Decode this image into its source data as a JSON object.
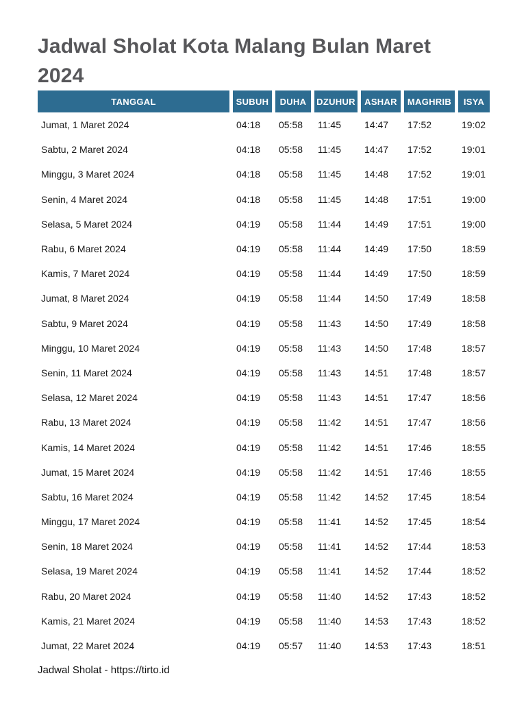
{
  "page": {
    "title_lines": [
      "Jadwal Sholat Kota Malang Bulan Maret",
      "2024"
    ],
    "footer_text": "Jadwal Sholat - https://tirto.id"
  },
  "colors": {
    "header_bg": "#2d6c91",
    "header_text": "#ffffff",
    "title_text": "#57575a",
    "body_text": "#1a1a1a",
    "page_bg": "#ffffff"
  },
  "table": {
    "columns": [
      "TANGGAL",
      "SUBUH",
      "DUHA",
      "DZUHUR",
      "ASHAR",
      "MAGHRIB",
      "ISYA"
    ],
    "rows": [
      [
        "Jumat, 1 Maret 2024",
        "04:18",
        "05:58",
        "11:45",
        "14:47",
        "17:52",
        "19:02"
      ],
      [
        "Sabtu, 2 Maret 2024",
        "04:18",
        "05:58",
        "11:45",
        "14:47",
        "17:52",
        "19:01"
      ],
      [
        "Minggu, 3 Maret 2024",
        "04:18",
        "05:58",
        "11:45",
        "14:48",
        "17:52",
        "19:01"
      ],
      [
        "Senin, 4 Maret 2024",
        "04:18",
        "05:58",
        "11:45",
        "14:48",
        "17:51",
        "19:00"
      ],
      [
        "Selasa, 5 Maret 2024",
        "04:19",
        "05:58",
        "11:44",
        "14:49",
        "17:51",
        "19:00"
      ],
      [
        "Rabu, 6 Maret 2024",
        "04:19",
        "05:58",
        "11:44",
        "14:49",
        "17:50",
        "18:59"
      ],
      [
        "Kamis, 7 Maret 2024",
        "04:19",
        "05:58",
        "11:44",
        "14:49",
        "17:50",
        "18:59"
      ],
      [
        "Jumat, 8 Maret 2024",
        "04:19",
        "05:58",
        "11:44",
        "14:50",
        "17:49",
        "18:58"
      ],
      [
        "Sabtu, 9 Maret 2024",
        "04:19",
        "05:58",
        "11:43",
        "14:50",
        "17:49",
        "18:58"
      ],
      [
        "Minggu, 10 Maret 2024",
        "04:19",
        "05:58",
        "11:43",
        "14:50",
        "17:48",
        "18:57"
      ],
      [
        "Senin, 11 Maret 2024",
        "04:19",
        "05:58",
        "11:43",
        "14:51",
        "17:48",
        "18:57"
      ],
      [
        "Selasa, 12 Maret 2024",
        "04:19",
        "05:58",
        "11:43",
        "14:51",
        "17:47",
        "18:56"
      ],
      [
        "Rabu, 13 Maret 2024",
        "04:19",
        "05:58",
        "11:42",
        "14:51",
        "17:47",
        "18:56"
      ],
      [
        "Kamis, 14 Maret 2024",
        "04:19",
        "05:58",
        "11:42",
        "14:51",
        "17:46",
        "18:55"
      ],
      [
        "Jumat, 15 Maret 2024",
        "04:19",
        "05:58",
        "11:42",
        "14:51",
        "17:46",
        "18:55"
      ],
      [
        "Sabtu, 16 Maret 2024",
        "04:19",
        "05:58",
        "11:42",
        "14:52",
        "17:45",
        "18:54"
      ],
      [
        "Minggu, 17 Maret 2024",
        "04:19",
        "05:58",
        "11:41",
        "14:52",
        "17:45",
        "18:54"
      ],
      [
        "Senin, 18 Maret 2024",
        "04:19",
        "05:58",
        "11:41",
        "14:52",
        "17:44",
        "18:53"
      ],
      [
        "Selasa, 19 Maret 2024",
        "04:19",
        "05:58",
        "11:41",
        "14:52",
        "17:44",
        "18:52"
      ],
      [
        "Rabu, 20 Maret 2024",
        "04:19",
        "05:58",
        "11:40",
        "14:52",
        "17:43",
        "18:52"
      ],
      [
        "Kamis, 21 Maret 2024",
        "04:19",
        "05:58",
        "11:40",
        "14:53",
        "17:43",
        "18:52"
      ],
      [
        "Jumat, 22 Maret 2024",
        "04:19",
        "05:57",
        "11:40",
        "14:53",
        "17:43",
        "18:51"
      ]
    ]
  }
}
